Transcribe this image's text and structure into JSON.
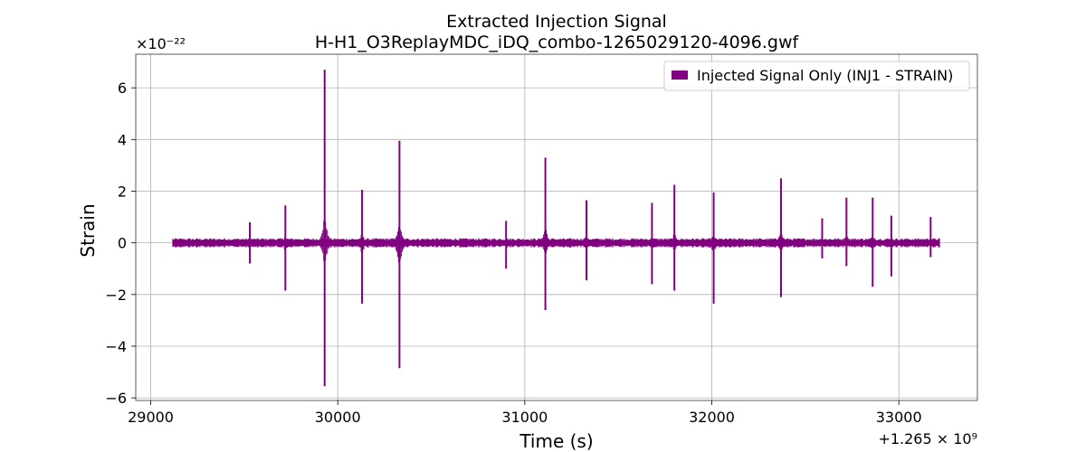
{
  "chart_data": {
    "type": "line",
    "title": "Extracted Injection Signal",
    "subtitle": "H-H1_O3ReplayMDC_iDQ_combo-1265029120-4096.gwf",
    "xlabel": "Time (s)",
    "ylabel": "Strain",
    "x_offset_label": "+1.265 × 10⁹",
    "y_scale_label": "×10⁻²²",
    "x_ticks": [
      29000,
      30000,
      31000,
      32000,
      33000
    ],
    "x_tick_labels": [
      "29000",
      "30000",
      "31000",
      "32000",
      "33000"
    ],
    "y_ticks": [
      -6,
      -4,
      -2,
      0,
      2,
      4,
      6
    ],
    "y_tick_labels": [
      "−6",
      "−4",
      "−2",
      "0",
      "2",
      "4",
      "6"
    ],
    "xlim": [
      28920,
      33420
    ],
    "ylim": [
      -6.1,
      7.3
    ],
    "grid": true,
    "legend_position": "top-right",
    "series": [
      {
        "name": "Injected Signal Only (INJ1 - STRAIN)",
        "color": "#800080",
        "x_range": [
          29120,
          33216
        ],
        "baseline_amplitude": 0.18,
        "spikes": [
          {
            "x": 29530,
            "max": 0.8,
            "min": -0.8
          },
          {
            "x": 29720,
            "max": 1.45,
            "min": -1.85
          },
          {
            "x": 29930,
            "max": 6.7,
            "min": -5.55
          },
          {
            "x": 30130,
            "max": 2.05,
            "min": -2.35
          },
          {
            "x": 30330,
            "max": 3.95,
            "min": -4.85
          },
          {
            "x": 30900,
            "max": 0.85,
            "min": -1.0
          },
          {
            "x": 31110,
            "max": 3.3,
            "min": -2.6
          },
          {
            "x": 31330,
            "max": 1.65,
            "min": -1.45
          },
          {
            "x": 31680,
            "max": 1.55,
            "min": -1.6
          },
          {
            "x": 31800,
            "max": 2.25,
            "min": -1.85
          },
          {
            "x": 32010,
            "max": 1.95,
            "min": -2.35
          },
          {
            "x": 32370,
            "max": 2.5,
            "min": -2.1
          },
          {
            "x": 32590,
            "max": 0.95,
            "min": -0.6
          },
          {
            "x": 32720,
            "max": 1.75,
            "min": -0.9
          },
          {
            "x": 32860,
            "max": 1.75,
            "min": -1.7
          },
          {
            "x": 32960,
            "max": 1.05,
            "min": -1.3
          },
          {
            "x": 33170,
            "max": 1.0,
            "min": -0.55
          }
        ]
      }
    ]
  }
}
